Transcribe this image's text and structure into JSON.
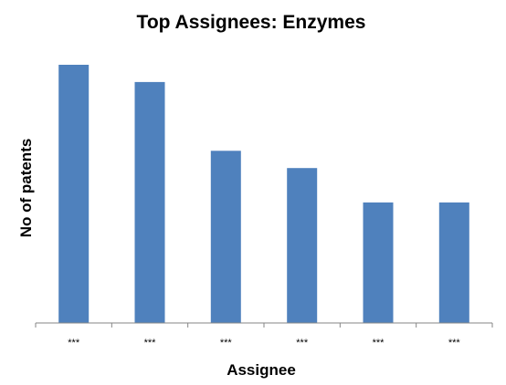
{
  "chart_data": {
    "type": "bar",
    "title": "Top Assignees:  Enzymes",
    "xlabel": "Assignee",
    "ylabel": "No of patents",
    "categories": [
      "***",
      "***",
      "***",
      "***",
      "***",
      "***"
    ],
    "values": [
      15,
      14,
      10,
      9,
      7,
      7
    ],
    "ylim": [
      0,
      16
    ],
    "grid": false,
    "legend": "none",
    "bar_color": "#4F81BD",
    "axis_color": "#868686"
  }
}
